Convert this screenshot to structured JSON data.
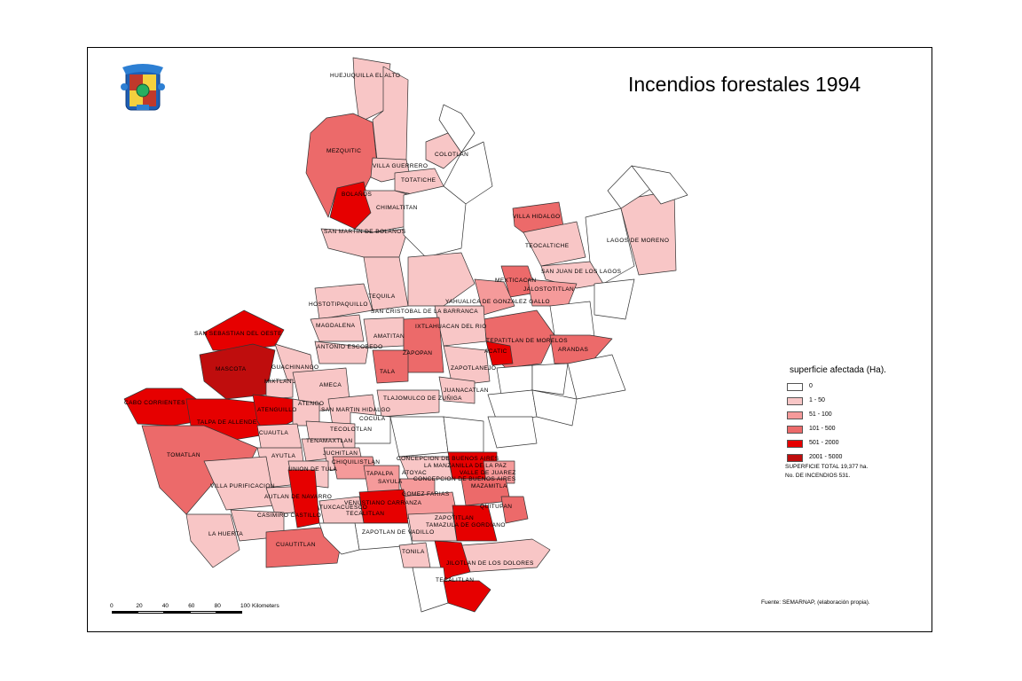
{
  "title": "Incendios forestales 1994",
  "colors": {
    "c0": "#ffffff",
    "c1": "#f8c6c6",
    "c2": "#f59a9a",
    "c3": "#ec6a6a",
    "c4": "#e60000",
    "c5": "#bf0d0d",
    "border": "#333333"
  },
  "legend": {
    "title": "superficie afectada (Ha).",
    "classes": [
      {
        "label": "0",
        "color": "#ffffff"
      },
      {
        "label": "1 - 50",
        "color": "#f8c6c6"
      },
      {
        "label": "51 - 100",
        "color": "#f59a9a"
      },
      {
        "label": "101 - 500",
        "color": "#ec6a6a"
      },
      {
        "label": "501 - 2000",
        "color": "#e60000"
      },
      {
        "label": "2001 - 5000",
        "color": "#bf0d0d"
      }
    ],
    "total_surface": "SUPERFICIE TOTAL 19,377 ha.",
    "total_fires": "No. DE INCENDIOS 531."
  },
  "source": "Fuente: SEMARNAP, (elaboración propia).",
  "scale": {
    "ticks": [
      "0",
      "20",
      "40",
      "60",
      "80",
      "100"
    ],
    "units": "Kilometers"
  },
  "municipios": [
    "HUEJUQUILLA EL ALTO",
    "MEZQUITIC",
    "VILLA GUERRERO",
    "COLOTLAN",
    "TOTATICHE",
    "BOLAÑOS",
    "CHIMALTITAN",
    "SAN MARTIN DE BOLAÑOS",
    "VILLA HIDALGO",
    "TEOCALTICHE",
    "LAGOS DE MORENO",
    "SAN JUAN DE LOS LAGOS",
    "MEXTICACAN",
    "JALOSTOTITLAN",
    "YAHUALICA DE GONZALEZ GALLO",
    "TEQUILA",
    "HOSTOTIPAQUILLO",
    "SAN CRISTOBAL DE LA BARRANCA",
    "MAGDALENA",
    "IXTLAHUACAN DEL RIO",
    "SAN SEBASTIAN DEL OESTE",
    "AMATITAN",
    "TEPATITLAN DE MORELOS",
    "ANTONIO ESCOBEDO",
    "ACATIC",
    "ARANDAS",
    "ZAPOPAN",
    "MASCOTA",
    "GUACHINANGO",
    "TALA",
    "ZAPOTLANEJO",
    "MIXTLAN",
    "AMECA",
    "JUANACATLAN",
    "CABO CORRIENTES",
    "ATENGUILLO",
    "ATENGO",
    "TLAJOMULCO DE ZUÑIGA",
    "SAN MARTIN HIDALGO",
    "TALPA DE ALLENDE",
    "COCULA",
    "CUAUTLA",
    "TECOLOTLAN",
    "TENAMAXTLAN",
    "TOMATLAN",
    "AYUTLA",
    "JUCHITLAN",
    "CHIQUILISTLAN",
    "CONCEPCION DE BUENOS AIRES",
    "LA MANZANILLA DE LA PAZ",
    "UNION DE TULA",
    "VALLE DE JUAREZ",
    "TAPALPA",
    "ATOYAC",
    "SAYULA",
    "CONCEPCION DE BUENOS AIRES",
    "VILLA PURIFICACION",
    "MAZAMITLA",
    "GOMEZ FARIAS",
    "AUTLAN DE NAVARRO",
    "VENUSTIANO CARRANZA",
    "QUITUPAN",
    "TECALITLAN",
    "CASIMIRO CASTILLO",
    "TUXCACUESCO",
    "ZAPOTITLAN",
    "TAMAZULA DE GORDIANO",
    "LA HUERTA",
    "ZAPOTLAN DE VADILLO",
    "CUAUTITLAN",
    "TONILA",
    "JILOTLAN DE LOS DOLORES",
    "TECALITLAN"
  ]
}
